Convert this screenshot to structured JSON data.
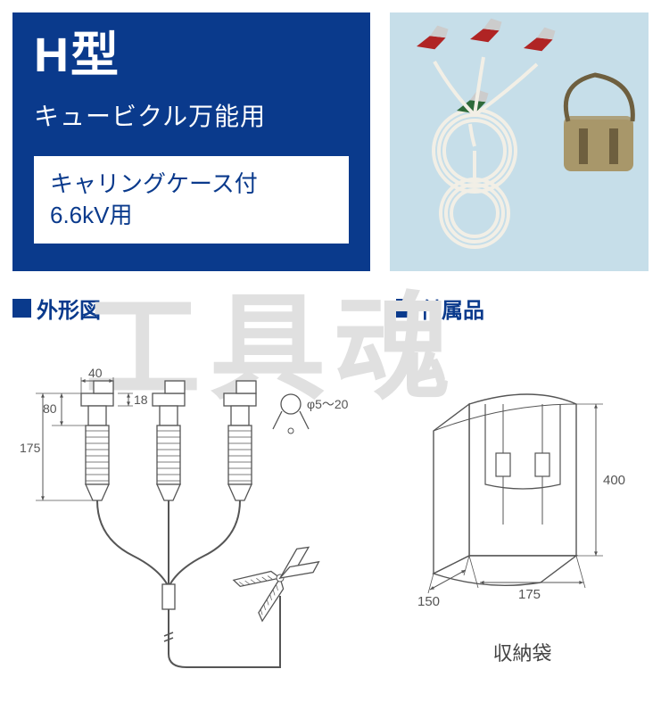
{
  "header": {
    "model": "H型",
    "usage": "キュービクル万能用",
    "inset_line1": "キャリングケース付",
    "inset_line2": "6.6kV用"
  },
  "sections": {
    "outline_label": "外形図",
    "accessory_label": "付属品"
  },
  "watermark": "工具魂",
  "outline_diagram": {
    "type": "diagram",
    "stroke": "#555555",
    "dim_font": 14,
    "dims": {
      "w1": "40",
      "h1": "18",
      "h2": "80",
      "h3": "175",
      "phi": "φ5～20"
    }
  },
  "photo": {
    "background": "#c6dee9",
    "clip_colors": {
      "red": "#b02424",
      "green": "#2e6a3a"
    },
    "bag_color": "#a8976a",
    "cable_color": "#f2efe6"
  },
  "bag_diagram": {
    "type": "diagram",
    "stroke": "#555555",
    "dim_font": 15,
    "dims": {
      "height": "400",
      "depth": "150",
      "width": "175"
    },
    "caption": "収納袋"
  }
}
